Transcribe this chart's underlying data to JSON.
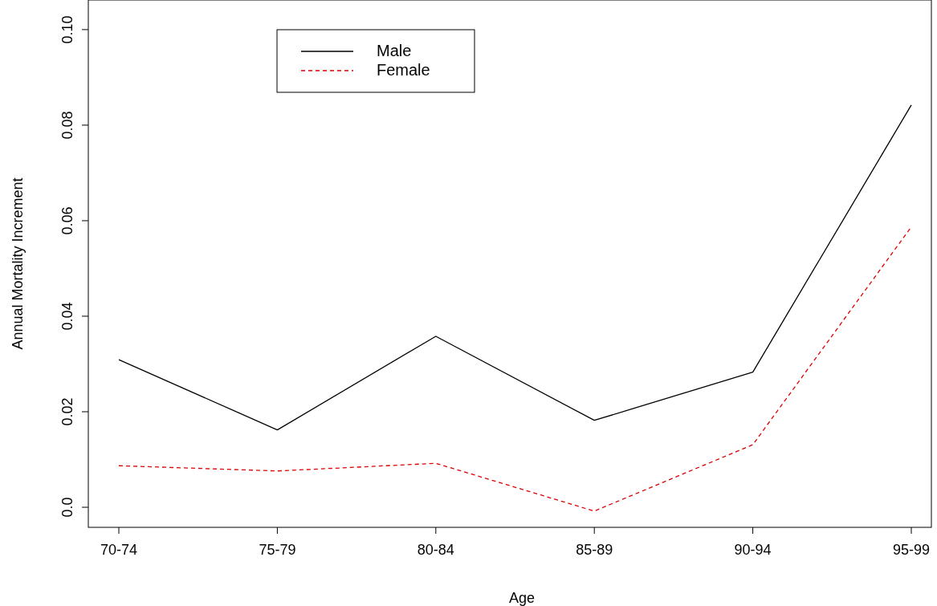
{
  "chart_data": {
    "type": "line",
    "xlabel": "Age",
    "ylabel": "Annual Mortality Increment",
    "categories": [
      "70-74",
      "75-79",
      "80-84",
      "85-89",
      "90-94",
      "95-99"
    ],
    "series": [
      {
        "name": "Male",
        "color": "#000000",
        "line_style": "solid",
        "values": [
          0.0309,
          0.0162,
          0.0358,
          0.0182,
          0.0283,
          0.0842
        ]
      },
      {
        "name": "Female",
        "color": "#dd0000",
        "line_style": "dashed",
        "values": [
          0.0087,
          0.0076,
          0.0092,
          -0.0008,
          0.0131,
          0.0587
        ]
      }
    ],
    "ylim": [
      -0.0042,
      0.1062
    ],
    "yticks": [
      {
        "value": 0,
        "label": "0.0"
      },
      0.02,
      0.04,
      0.06,
      0.08,
      {
        "value": 0.1,
        "label": "0.10"
      }
    ],
    "grid": false,
    "legend": "top left",
    "marker": "none"
  }
}
